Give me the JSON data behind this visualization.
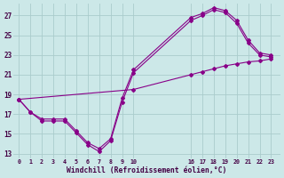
{
  "bg_color": "#cce8e8",
  "line_color": "#880088",
  "grid_color": "#aacccc",
  "xlabel": "Windchill (Refroidissement éolien,°C)",
  "x_labels": [
    "0",
    "1",
    "2",
    "3",
    "4",
    "5",
    "6",
    "7",
    "8",
    "9",
    "10",
    "",
    "",
    "",
    "",
    "",
    "16171819202122 23"
  ],
  "yticks": [
    13,
    15,
    17,
    19,
    21,
    23,
    25,
    27
  ],
  "ylim": [
    12.5,
    28.2
  ],
  "line1_pos": [
    0,
    1,
    2,
    3,
    4,
    5,
    6,
    7,
    8,
    9,
    10,
    15,
    16,
    17,
    18,
    19,
    20,
    21,
    22
  ],
  "line1_y": [
    18.5,
    17.2,
    16.3,
    16.3,
    16.3,
    15.1,
    13.9,
    13.2,
    14.3,
    18.2,
    21.2,
    26.5,
    27.0,
    27.6,
    27.3,
    26.2,
    24.2,
    23.0,
    22.8
  ],
  "line2_pos": [
    0,
    1,
    2,
    3,
    4,
    5,
    6,
    7,
    8,
    9,
    10,
    15,
    16,
    17,
    18,
    19,
    20,
    21,
    22
  ],
  "line2_y": [
    18.5,
    17.2,
    16.5,
    16.5,
    16.5,
    15.3,
    14.1,
    13.5,
    14.5,
    18.6,
    21.5,
    26.8,
    27.2,
    27.8,
    27.5,
    26.5,
    24.5,
    23.2,
    23.0
  ],
  "line3_pos": [
    0,
    10,
    15,
    16,
    17,
    18,
    19,
    20,
    21,
    22
  ],
  "line3_y": [
    18.5,
    19.5,
    21.0,
    21.3,
    21.6,
    21.9,
    22.1,
    22.3,
    22.4,
    22.6
  ],
  "x_tick_pos": [
    0,
    1,
    2,
    3,
    4,
    5,
    6,
    7,
    8,
    9,
    10,
    15,
    16,
    17,
    18,
    19,
    20,
    21,
    22
  ],
  "x_tick_labels": [
    "0",
    "1",
    "2",
    "3",
    "4",
    "5",
    "6",
    "7",
    "8",
    "9",
    "10",
    "16",
    "17",
    "18",
    "19",
    "20",
    "21",
    "22",
    "23"
  ]
}
